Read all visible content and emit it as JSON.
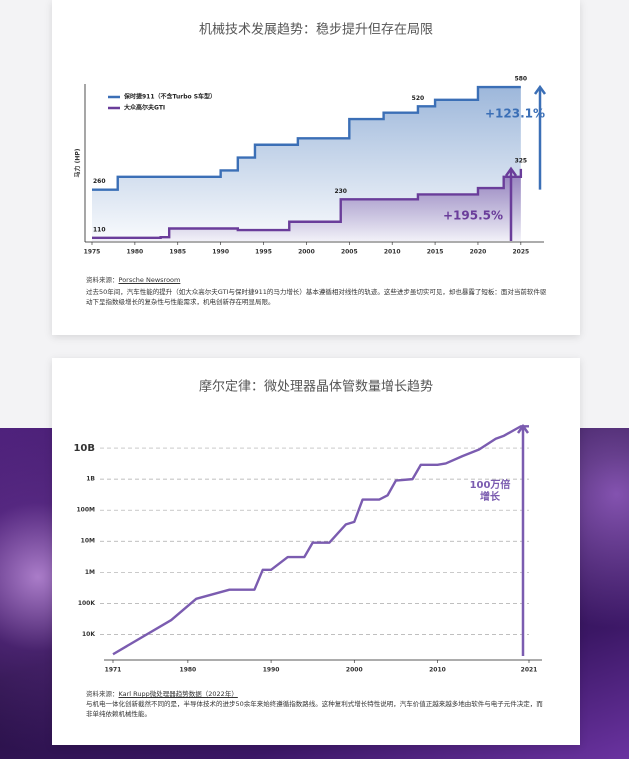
{
  "chart_data": [
    {
      "type": "line",
      "step": true,
      "title": "机械技术发展趋势：稳步提升但存在局限",
      "y_label": "马力 (HP)",
      "xlim": [
        1975,
        2027
      ],
      "xticks": [
        1975,
        1980,
        1985,
        1990,
        1995,
        2000,
        2005,
        2010,
        2015,
        2020,
        2025
      ],
      "ylim": [
        100,
        600
      ],
      "series": [
        {
          "name": "保时捷911（不含Turbo S车型）",
          "color": "#3b6fb6",
          "x": [
            1975,
            1978,
            1990,
            1992,
            1994,
            1999,
            2005,
            2009,
            2013,
            2015,
            2020,
            2025
          ],
          "values": [
            260,
            300,
            320,
            360,
            400,
            420,
            480,
            500,
            520,
            540,
            580,
            580
          ],
          "value_labels": [
            "260",
            null,
            null,
            null,
            null,
            null,
            null,
            null,
            "520",
            null,
            null,
            "580"
          ],
          "change_label": "+123.1%"
        },
        {
          "name": "大众高尔夫GTI",
          "color": "#6a3d9a",
          "x": [
            1975,
            1983,
            1984,
            1992,
            1998,
            2004,
            2013,
            2020,
            2023,
            2025
          ],
          "values": [
            110,
            112,
            139,
            134,
            160,
            230,
            245,
            265,
            300,
            325
          ],
          "value_labels": [
            "110",
            null,
            null,
            null,
            null,
            "230",
            null,
            null,
            null,
            "325"
          ],
          "change_label": "+195.5%"
        }
      ],
      "source_label": "资料来源：",
      "source": "Porsche Newsroom",
      "note": "过去50年间，汽车性能的提升（如大众高尔夫GTI与保时捷911的马力增长）基本遵循相对线性的轨迹。这些进步虽切实可见，却也暴露了短板：面对当前软件驱动下呈指数级增长的复杂性与性能需求，机电创新存在明显局限。"
    },
    {
      "type": "line",
      "log_scale": true,
      "grid": true,
      "title": "摩尔定律：微处理器晶体管数量增长趋势",
      "color": "#7b5cb0",
      "xlim": [
        1971,
        2021
      ],
      "xticks": [
        1971,
        1980,
        1990,
        2000,
        2010,
        2021
      ],
      "ylim": [
        1500,
        60000000000
      ],
      "yticks": [
        {
          "value": 10000,
          "label": "10K"
        },
        {
          "value": 100000,
          "label": "100K"
        },
        {
          "value": 1000000,
          "label": "1M"
        },
        {
          "value": 10000000,
          "label": "10M"
        },
        {
          "value": 100000000,
          "label": "100M"
        },
        {
          "value": 1000000000,
          "label": "1B"
        },
        {
          "value": 10000000000,
          "label": "10B"
        }
      ],
      "x": [
        1971,
        1978,
        1981,
        1985,
        1988,
        1989,
        1990,
        1992,
        1994,
        1995,
        1997,
        1999,
        2000,
        2001,
        2003,
        2004,
        2005,
        2007,
        2008,
        2010,
        2011,
        2013,
        2015,
        2017,
        2018,
        2020,
        2021
      ],
      "values": [
        2300,
        29000,
        140000,
        275000,
        275000,
        1200000,
        1200000,
        3100000,
        3100000,
        9000000,
        9000000,
        35000000,
        42000000,
        220000000,
        220000000,
        300000000,
        900000000,
        1000000000,
        2900000000,
        2900000000,
        3200000000,
        5500000000,
        9000000000,
        20000000000,
        25000000000,
        50000000000,
        50000000000
      ],
      "annotation_lines": [
        "100万倍",
        "增长"
      ],
      "source_label": "资料来源：",
      "source": "Karl Rupp微处理器趋势数据（2022年）",
      "note": "与机电一体化创新截然不同的是，半导体技术的进步50余年来始终遵循指数路线。这种复利式增长特性说明，汽车价值正越来越多地由软件与电子元件决定，而非单纯依赖机械性能。"
    }
  ]
}
